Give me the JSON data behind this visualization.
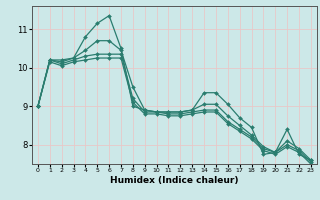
{
  "xlabel": "Humidex (Indice chaleur)",
  "bg_color": "#cce8e8",
  "grid_color": "#b0d0d0",
  "line_color": "#2a7d6f",
  "ylim": [
    7.5,
    11.6
  ],
  "xlim": [
    -0.5,
    23.5
  ],
  "yticks": [
    8,
    9,
    10,
    11
  ],
  "xticks": [
    0,
    1,
    2,
    3,
    4,
    5,
    6,
    7,
    8,
    9,
    10,
    11,
    12,
    13,
    14,
    15,
    16,
    17,
    18,
    19,
    20,
    21,
    22,
    23
  ],
  "series": [
    [
      9.0,
      10.2,
      10.2,
      10.25,
      10.8,
      11.15,
      11.35,
      10.5,
      9.0,
      8.9,
      8.85,
      8.85,
      8.85,
      8.9,
      9.35,
      9.35,
      9.05,
      8.7,
      8.45,
      7.75,
      7.8,
      8.4,
      7.75,
      7.6
    ],
    [
      9.0,
      10.2,
      10.15,
      10.25,
      10.45,
      10.7,
      10.7,
      10.45,
      9.5,
      8.9,
      8.85,
      8.85,
      8.85,
      8.9,
      9.05,
      9.05,
      8.75,
      8.5,
      8.25,
      7.95,
      7.8,
      8.1,
      7.9,
      7.6
    ],
    [
      9.0,
      10.2,
      10.1,
      10.2,
      10.3,
      10.35,
      10.35,
      10.35,
      9.2,
      8.85,
      8.85,
      8.8,
      8.8,
      8.85,
      8.9,
      8.9,
      8.6,
      8.4,
      8.2,
      7.9,
      7.8,
      8.0,
      7.85,
      7.55
    ],
    [
      9.0,
      10.15,
      10.05,
      10.15,
      10.2,
      10.25,
      10.25,
      10.25,
      9.1,
      8.8,
      8.8,
      8.75,
      8.75,
      8.8,
      8.85,
      8.85,
      8.55,
      8.35,
      8.15,
      7.85,
      7.75,
      7.95,
      7.8,
      7.5
    ]
  ]
}
